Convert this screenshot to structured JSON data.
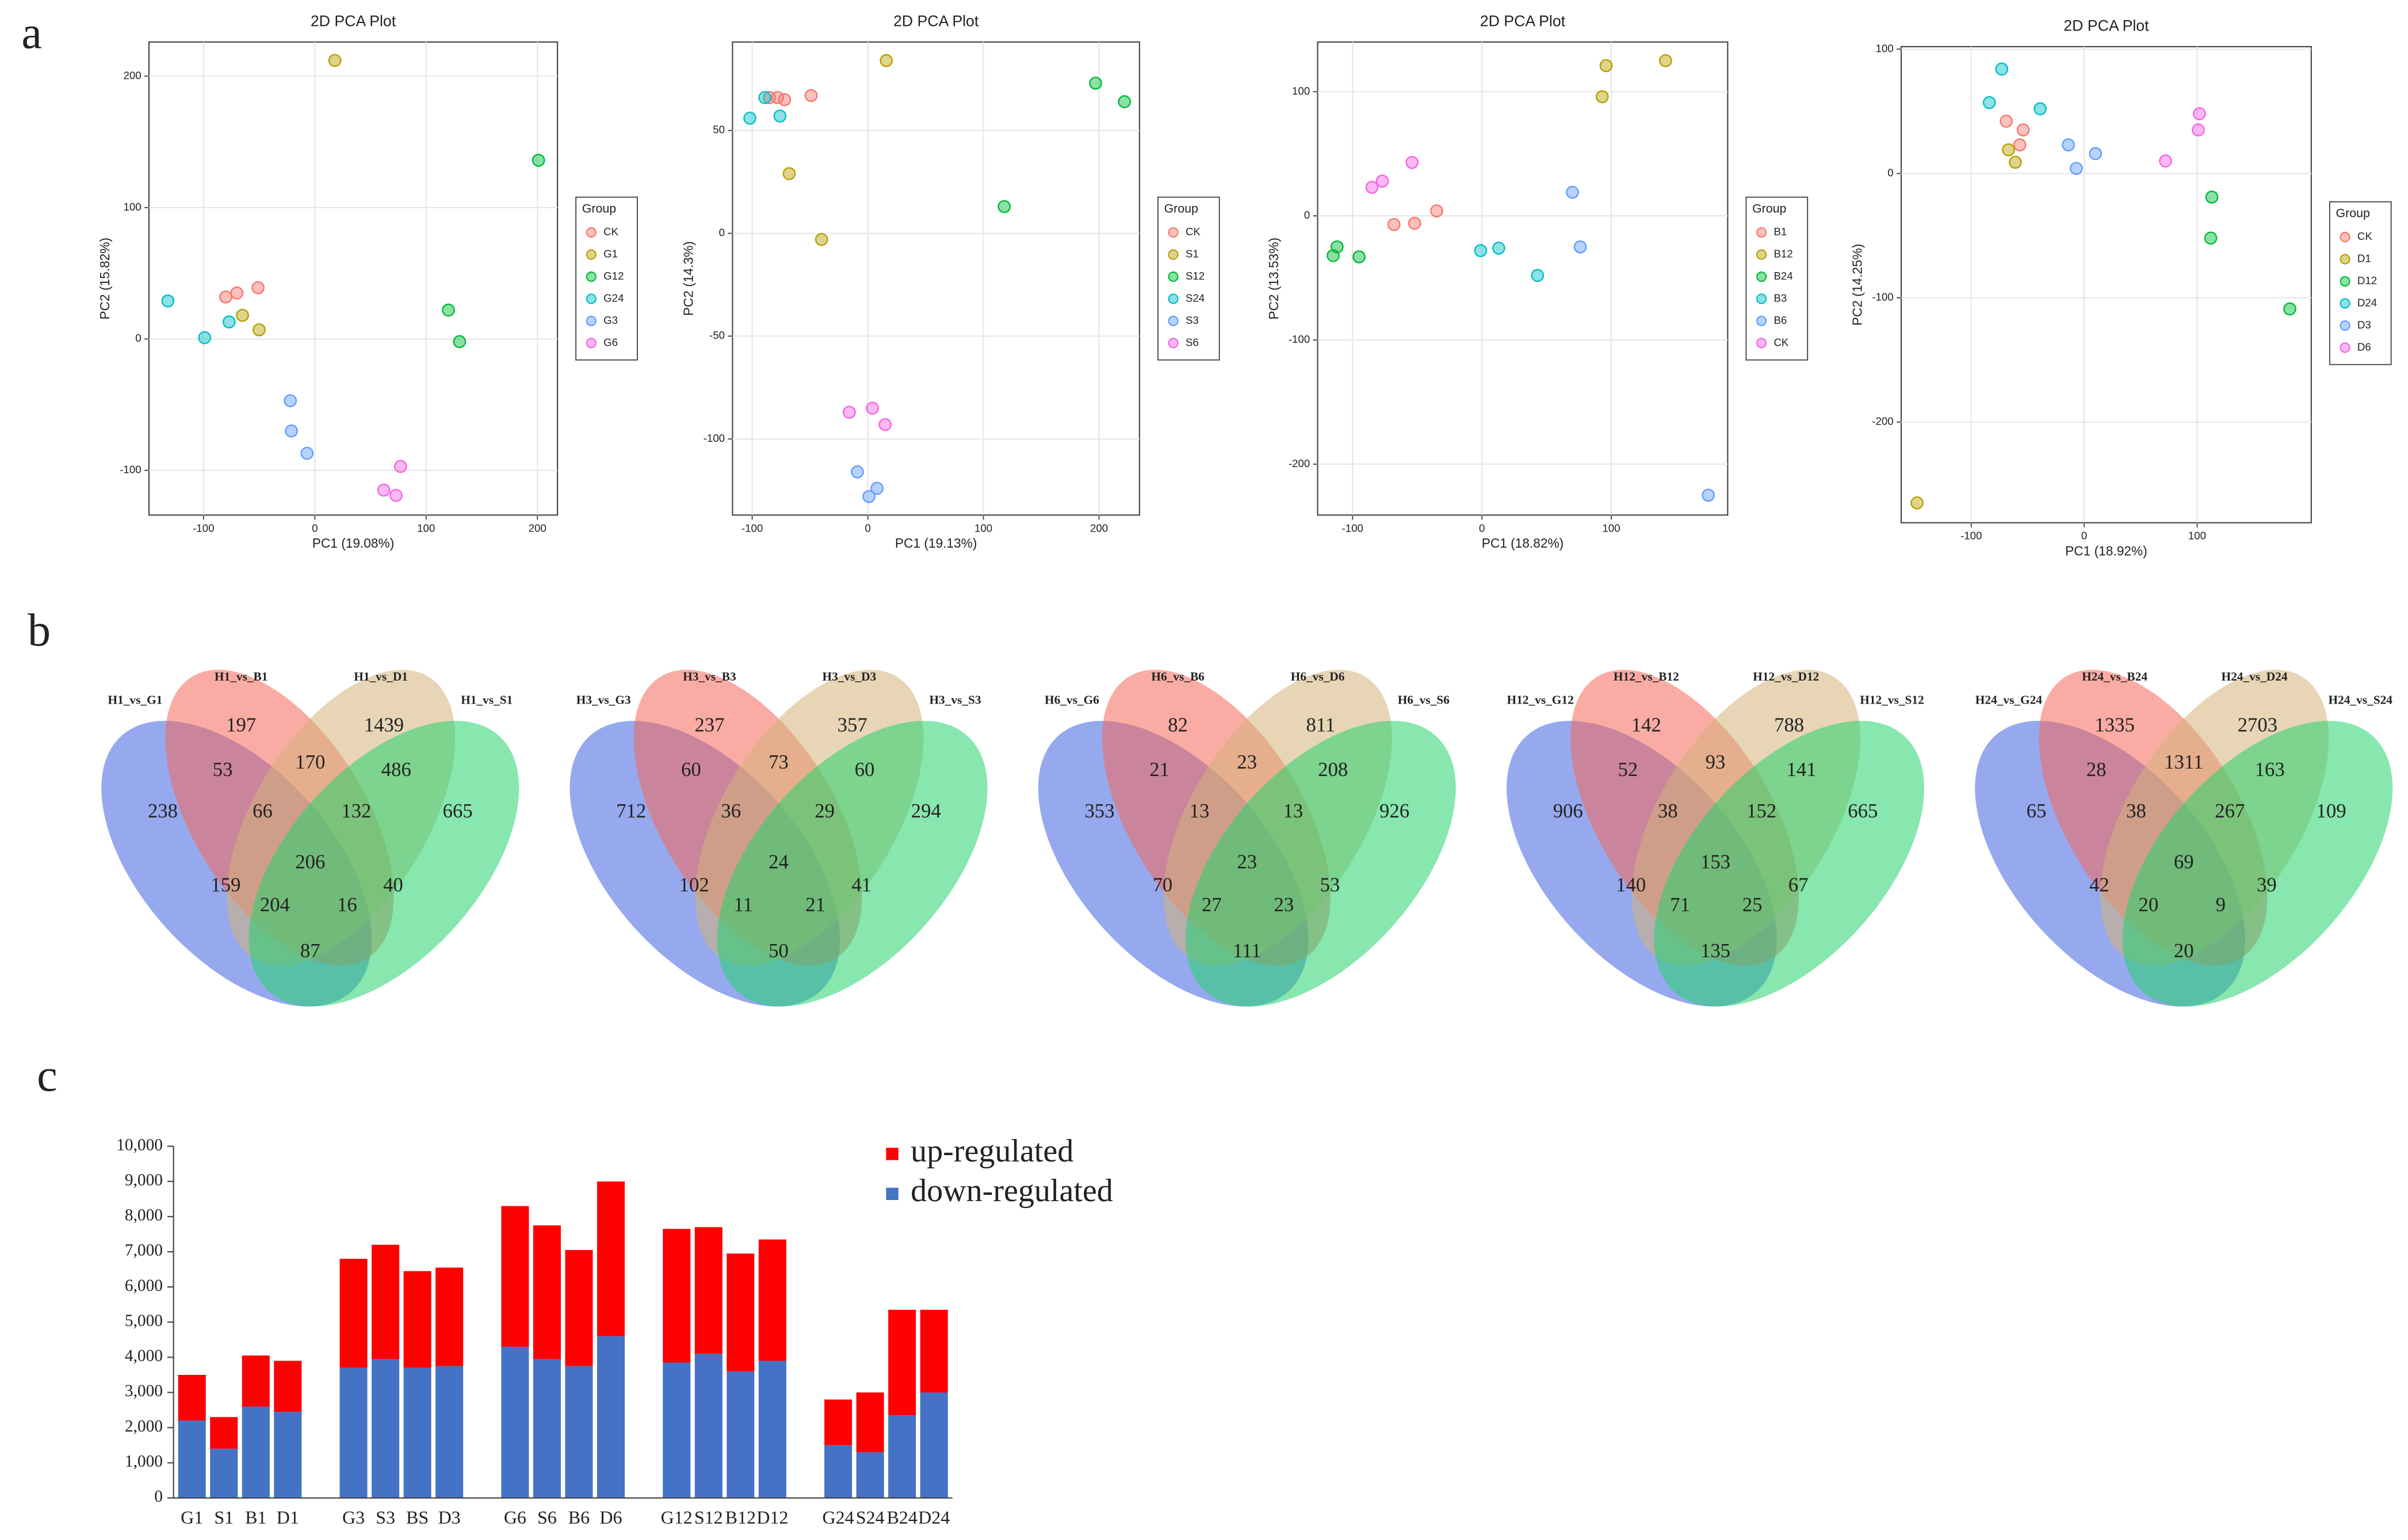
{
  "panel_labels": [
    "a",
    "b",
    "c"
  ],
  "chart_data": [
    {
      "type": "scatter",
      "title": "2D PCA Plot",
      "x_label": "PC1 (19.08%)",
      "y_label": "PC2 (15.82%)",
      "legend_title": "Group",
      "grid": true,
      "xlim": [
        -149,
        218
      ],
      "ylim": [
        -134,
        226
      ],
      "xticks": [
        -100,
        0,
        100,
        200
      ],
      "yticks": [
        -100,
        0,
        100,
        200
      ],
      "series": [
        {
          "name": "CK",
          "color": "#f8766d",
          "x": [
            -80,
            -70,
            -51
          ],
          "values": [
            32,
            35,
            39
          ]
        },
        {
          "name": "G1",
          "color": "#b79f00",
          "x": [
            18,
            -65,
            -50
          ],
          "values": [
            212,
            18,
            7
          ]
        },
        {
          "name": "G12",
          "color": "#00ba38",
          "x": [
            201,
            120,
            130
          ],
          "values": [
            136,
            22,
            -2
          ]
        },
        {
          "name": "G24",
          "color": "#00bfc4",
          "x": [
            -132,
            -99,
            -77
          ],
          "values": [
            29,
            1,
            13
          ]
        },
        {
          "name": "G3",
          "color": "#619cff",
          "x": [
            -22,
            -21,
            -7
          ],
          "values": [
            -47,
            -70,
            -87
          ]
        },
        {
          "name": "G6",
          "color": "#f564e3",
          "x": [
            77,
            62,
            73
          ],
          "values": [
            -97,
            -115,
            -119
          ]
        }
      ]
    },
    {
      "type": "scatter",
      "title": "2D PCA Plot",
      "x_label": "PC1 (19.13%)",
      "y_label": "PC2 (14.3%)",
      "legend_title": "Group",
      "grid": true,
      "xlim": [
        -117,
        235
      ],
      "ylim": [
        -137,
        93
      ],
      "xticks": [
        -100,
        0,
        100,
        200
      ],
      "yticks": [
        -100,
        -50,
        0,
        50
      ],
      "series": [
        {
          "name": "CK",
          "color": "#f8766d",
          "x": [
            -85,
            -78,
            -72,
            -49
          ],
          "values": [
            66,
            66,
            65,
            67
          ]
        },
        {
          "name": "S1",
          "color": "#b79f00",
          "x": [
            16,
            -68,
            -40
          ],
          "values": [
            84,
            29,
            -3
          ]
        },
        {
          "name": "S12",
          "color": "#00ba38",
          "x": [
            197,
            222,
            118
          ],
          "values": [
            73,
            64,
            13
          ]
        },
        {
          "name": "S24",
          "color": "#00bfc4",
          "x": [
            -102,
            -89,
            -76
          ],
          "values": [
            56,
            66,
            57
          ]
        },
        {
          "name": "S3",
          "color": "#619cff",
          "x": [
            -9,
            1,
            8
          ],
          "values": [
            -116,
            -128,
            -124
          ]
        },
        {
          "name": "S6",
          "color": "#f564e3",
          "x": [
            -16,
            4,
            15
          ],
          "values": [
            -87,
            -85,
            -93
          ]
        }
      ]
    },
    {
      "type": "scatter",
      "title": "2D PCA Plot",
      "x_label": "PC1 (18.82%)",
      "y_label": "PC2 (13.53%)",
      "legend_title": "Group",
      "grid": true,
      "xlim": [
        -127,
        190
      ],
      "ylim": [
        -241,
        140
      ],
      "xticks": [
        -100,
        0,
        100
      ],
      "yticks": [
        -200,
        -100,
        0,
        100
      ],
      "series": [
        {
          "name": "B1",
          "color": "#f8766d",
          "x": [
            -68,
            -52,
            -35
          ],
          "values": [
            -7,
            -6,
            4
          ]
        },
        {
          "name": "B12",
          "color": "#b79f00",
          "x": [
            96,
            142,
            93
          ],
          "values": [
            121,
            125,
            96
          ]
        },
        {
          "name": "B24",
          "color": "#00ba38",
          "x": [
            -115,
            -112,
            -95
          ],
          "values": [
            -32,
            -25,
            -33
          ]
        },
        {
          "name": "B3",
          "color": "#00bfc4",
          "x": [
            -1,
            13,
            43
          ],
          "values": [
            -28,
            -26,
            -48
          ]
        },
        {
          "name": "B6",
          "color": "#619cff",
          "x": [
            70,
            76,
            175
          ],
          "values": [
            19,
            -25,
            -225
          ]
        },
        {
          "name": "CK",
          "color": "#f564e3",
          "x": [
            -85,
            -77,
            -54
          ],
          "values": [
            23,
            28,
            43
          ]
        }
      ]
    },
    {
      "type": "scatter",
      "title": "2D PCA Plot",
      "x_label": "PC1 (18.92%)",
      "y_label": "PC2 (14.25%)",
      "legend_title": "Group",
      "grid": true,
      "xlim": [
        -162,
        201
      ],
      "ylim": [
        -281,
        102
      ],
      "xticks": [
        -100,
        0,
        100
      ],
      "yticks": [
        -200,
        -100,
        0,
        100
      ],
      "series": [
        {
          "name": "CK",
          "color": "#f8766d",
          "x": [
            -69,
            -54,
            -57
          ],
          "values": [
            42,
            35,
            23
          ]
        },
        {
          "name": "D1",
          "color": "#b79f00",
          "x": [
            -67,
            -61,
            -148
          ],
          "values": [
            19,
            9,
            -265
          ]
        },
        {
          "name": "D12",
          "color": "#00ba38",
          "x": [
            113,
            112,
            182
          ],
          "values": [
            -19,
            -52,
            -109
          ]
        },
        {
          "name": "D24",
          "color": "#00bfc4",
          "x": [
            -73,
            -84,
            -39
          ],
          "values": [
            84,
            57,
            52
          ]
        },
        {
          "name": "D3",
          "color": "#619cff",
          "x": [
            -14,
            -7,
            10
          ],
          "values": [
            23,
            4,
            16
          ]
        },
        {
          "name": "D6",
          "color": "#f564e3",
          "x": [
            102,
            101,
            72
          ],
          "values": [
            48,
            35,
            10
          ]
        }
      ]
    },
    {
      "type": "venn",
      "sets": [
        "H1_vs_G1",
        "H1_vs_B1",
        "H1_vs_D1",
        "H1_vs_S1"
      ],
      "colors": [
        "#3f63e0",
        "#f5675a",
        "#d4b27a",
        "#25d46e"
      ],
      "values": [
        197,
        1439,
        170,
        53,
        486,
        238,
        66,
        132,
        665,
        206,
        159,
        40,
        204,
        16,
        87
      ]
    },
    {
      "type": "venn",
      "sets": [
        "H3_vs_G3",
        "H3_vs_B3",
        "H3_vs_D3",
        "H3_vs_S3"
      ],
      "colors": [
        "#3f63e0",
        "#f5675a",
        "#d4b27a",
        "#25d46e"
      ],
      "values": [
        237,
        357,
        73,
        60,
        60,
        712,
        36,
        29,
        294,
        24,
        102,
        41,
        11,
        21,
        50
      ]
    },
    {
      "type": "venn",
      "sets": [
        "H6_vs_G6",
        "H6_vs_B6",
        "H6_vs_D6",
        "H6_vs_S6"
      ],
      "colors": [
        "#3f63e0",
        "#f5675a",
        "#d4b27a",
        "#25d46e"
      ],
      "values": [
        82,
        811,
        23,
        21,
        208,
        353,
        13,
        13,
        926,
        23,
        70,
        53,
        27,
        23,
        111
      ]
    },
    {
      "type": "venn",
      "sets": [
        "H12_vs_G12",
        "H12_vs_B12",
        "H12_vs_D12",
        "H12_vs_S12"
      ],
      "colors": [
        "#3f63e0",
        "#f5675a",
        "#d4b27a",
        "#25d46e"
      ],
      "values": [
        142,
        788,
        93,
        52,
        141,
        906,
        38,
        152,
        665,
        153,
        140,
        67,
        71,
        25,
        135
      ]
    },
    {
      "type": "venn",
      "sets": [
        "H24_vs_G24",
        "H24_vs_B24",
        "H24_vs_D24",
        "H24_vs_S24"
      ],
      "colors": [
        "#3f63e0",
        "#f5675a",
        "#d4b27a",
        "#25d46e"
      ],
      "values": [
        1335,
        2703,
        1311,
        28,
        163,
        65,
        38,
        267,
        109,
        69,
        42,
        39,
        20,
        9,
        20
      ]
    },
    {
      "type": "bar",
      "stacked": true,
      "categories": [
        "G1",
        "S1",
        "B1",
        "D1",
        "G3",
        "S3",
        "BS",
        "D3",
        "G6",
        "S6",
        "B6",
        "D6",
        "G12",
        "S12",
        "B12",
        "D12",
        "G24",
        "S24",
        "B24",
        "D24"
      ],
      "series": [
        {
          "name": "down-regulated",
          "color": "#4472c4",
          "values": [
            2200,
            1400,
            2600,
            2450,
            3700,
            3950,
            3700,
            3750,
            4300,
            3950,
            3750,
            4600,
            3850,
            4100,
            3600,
            3900,
            1500,
            1300,
            2350,
            3000
          ]
        },
        {
          "name": "up-regulated",
          "color": "#ff0000",
          "values": [
            1300,
            900,
            1450,
            1450,
            3100,
            3250,
            2750,
            2800,
            4000,
            3800,
            3300,
            4400,
            3800,
            3600,
            3350,
            3450,
            1300,
            1700,
            3000,
            2350
          ]
        }
      ],
      "ylim": [
        0,
        10000
      ],
      "yticks": [
        0,
        {
          "value": 1000,
          "label": "1,000"
        },
        {
          "value": 2000,
          "label": "2,000"
        },
        {
          "value": 3000,
          "label": "3,000"
        },
        {
          "value": 4000,
          "label": "4,000"
        },
        {
          "value": 5000,
          "label": "5,000"
        },
        {
          "value": 6000,
          "label": "6,000"
        },
        {
          "value": 7000,
          "label": "7,000"
        },
        {
          "value": 8000,
          "label": "8,000"
        },
        {
          "value": 9000,
          "label": "9,000"
        },
        {
          "value": 10000,
          "label": "10,000"
        }
      ]
    }
  ]
}
